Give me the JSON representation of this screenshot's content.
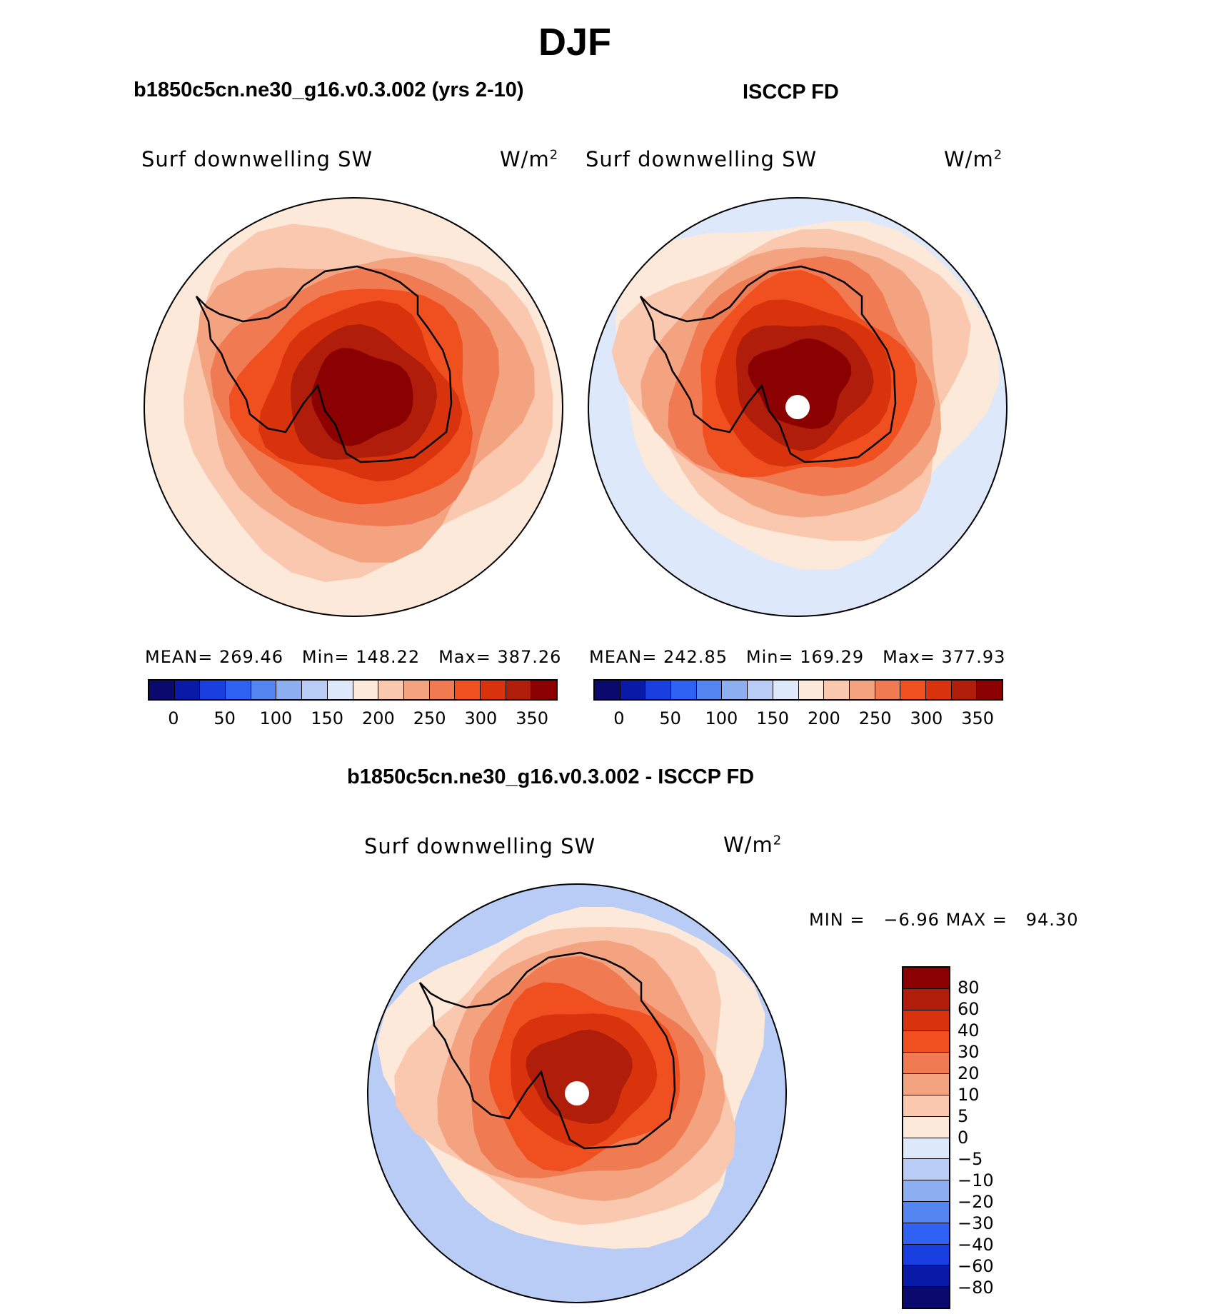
{
  "figure": {
    "title": "DJF",
    "panel1_title": "b1850c5cn.ne30_g16.v0.3.002 (yrs 2-10)",
    "panel2_title": "ISCCP FD",
    "diff_title": "b1850c5cn.ne30_g16.v0.3.002 - ISCCP FD"
  },
  "panels": [
    {
      "variable": "Surf downwelling SW",
      "units": "W/m",
      "units_sup": "2",
      "mean_label": "MEAN=",
      "mean_value": "269.46",
      "min_label": "Min=",
      "min_value": "148.22",
      "max_label": "Max=",
      "max_value": "387.26"
    },
    {
      "variable": "Surf downwelling SW",
      "units": "W/m",
      "units_sup": "2",
      "mean_label": "MEAN=",
      "mean_value": "242.85",
      "min_label": "Min=",
      "min_value": "169.29",
      "max_label": "Max=",
      "max_value": "377.93"
    }
  ],
  "diff_panel": {
    "variable": "Surf downwelling SW",
    "units": "W/m",
    "units_sup": "2",
    "min_label": "MIN =",
    "min_value": "−6.96",
    "max_label": "MAX =",
    "max_value": "94.30"
  },
  "colorbar_abs": {
    "colors": [
      "#0a0a6e",
      "#0a1aa8",
      "#1a3fe0",
      "#2f62f2",
      "#5585f0",
      "#8eaef2",
      "#b8ccf5",
      "#dde8fa",
      "#fde9d9",
      "#f9c8ae",
      "#f4a381",
      "#f07a52",
      "#f0501f",
      "#d8330c",
      "#b01d0a",
      "#8b0000"
    ],
    "tick_labels": [
      "0",
      "50",
      "100",
      "150",
      "200",
      "250",
      "300",
      "350"
    ]
  },
  "colorbar_diff": {
    "colors": [
      "#8b0000",
      "#b01d0a",
      "#d8330c",
      "#f0501f",
      "#f07a52",
      "#f4a381",
      "#f9c8ae",
      "#fde9d9",
      "#dde8fa",
      "#b8ccf5",
      "#8eaef2",
      "#5585f0",
      "#2f62f2",
      "#1a3fe0",
      "#0a1aa8",
      "#0a0a6e"
    ],
    "tick_labels": [
      "80",
      "60",
      "40",
      "30",
      "20",
      "10",
      "5",
      "0",
      "−5",
      "−10",
      "−20",
      "−30",
      "−40",
      "−60",
      "−80"
    ]
  },
  "map_colors": {
    "p1": [
      "#fde9d9",
      "#f9c8ae",
      "#f4a381",
      "#f07a52",
      "#f0501f",
      "#d8330c",
      "#b01d0a",
      "#8b0000"
    ],
    "p2": [
      "#dde8fa",
      "#fde9d9",
      "#f9c8ae",
      "#f4a381",
      "#f07a52",
      "#f0501f",
      "#d8330c",
      "#b01d0a",
      "#8b0000"
    ],
    "diff": [
      "#b8ccf5",
      "#fde9d9",
      "#f9c8ae",
      "#f4a381",
      "#f07a52",
      "#f0501f",
      "#d8330c",
      "#b01d0a"
    ]
  }
}
